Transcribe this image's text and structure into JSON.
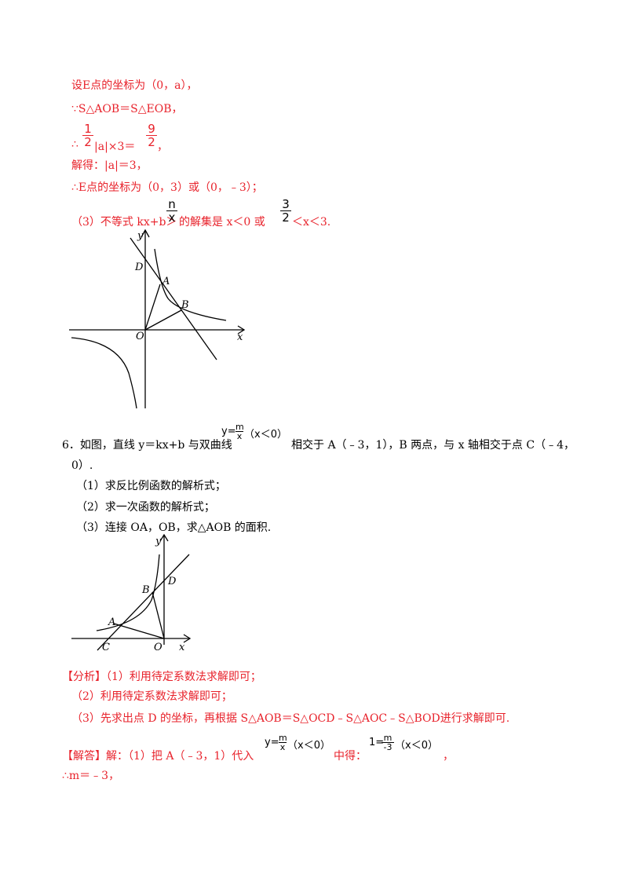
{
  "part1": {
    "l1": "设E点的坐标为（0，a），",
    "l2": "∵S△AOB＝S△EOB，",
    "l3_frac_num": "1",
    "l3_frac_den": "2",
    "l3_mid": "|a|×3＝",
    "l3_frac2_num": "9",
    "l3_frac2_den": "2",
    "l3_end": "，",
    "l4": "解得：|a|＝3，",
    "l5": "∴E点的坐标为（0，3）或（0，﹣3）；",
    "l6_pre": "（3）不等式 kx+b＞",
    "l6_frac_num": "n",
    "l6_frac_den": "x",
    "l6_mid": "的解集是 x＜0 或",
    "l6_frac2_num": "3",
    "l6_frac2_den": "2",
    "l6_end": "＜x＜3."
  },
  "figure1": {
    "labels": {
      "y": "y",
      "x": "x",
      "D": "D",
      "A": "A",
      "B": "B",
      "O": "O"
    }
  },
  "question6": {
    "l1_pre": "6．如图，直线 y＝kx+b 与双曲线",
    "eq_y": "y=",
    "eq_num": "m",
    "eq_den": "x",
    "eq_cond": "（x＜0）",
    "l1_post": "相交于 A（﹣3，1），B 两点，与 x 轴相交于点 C（﹣4，",
    "l2": "0）.",
    "q1": "（1）求反比例函数的解析式；",
    "q2": "（2）求一次函数的解析式；",
    "q3": "（3）连接 OA，OB，求△AOB 的面积."
  },
  "figure2": {
    "labels": {
      "y": "y",
      "x": "x",
      "B": "B",
      "D": "D",
      "A": "A",
      "C": "C",
      "O": "O"
    }
  },
  "analysis": {
    "a1_tag": "【分析】",
    "a1": "（1）利用待定系数法求解即可；",
    "a2": "（2）利用待定系数法求解即可；",
    "a3": "（3）先求出点 D 的坐标，再根据 S△AOB＝S△OCD﹣S△AOC﹣S△BOD进行求解即可."
  },
  "solution": {
    "tag": "【解答】",
    "s1_pre": "解：（1）把 A（﹣3，1）代入",
    "eq1_y": "y=",
    "eq1_num": "m",
    "eq1_den": "x",
    "eq1_cond": "（x＜0）",
    "s1_mid": "中得：",
    "eq2_left": "1=",
    "eq2_num": "m",
    "eq2_den": "-3",
    "eq2_cond": "（x＜0）",
    "s1_end": "，",
    "s2": "∴m＝﹣3，"
  }
}
